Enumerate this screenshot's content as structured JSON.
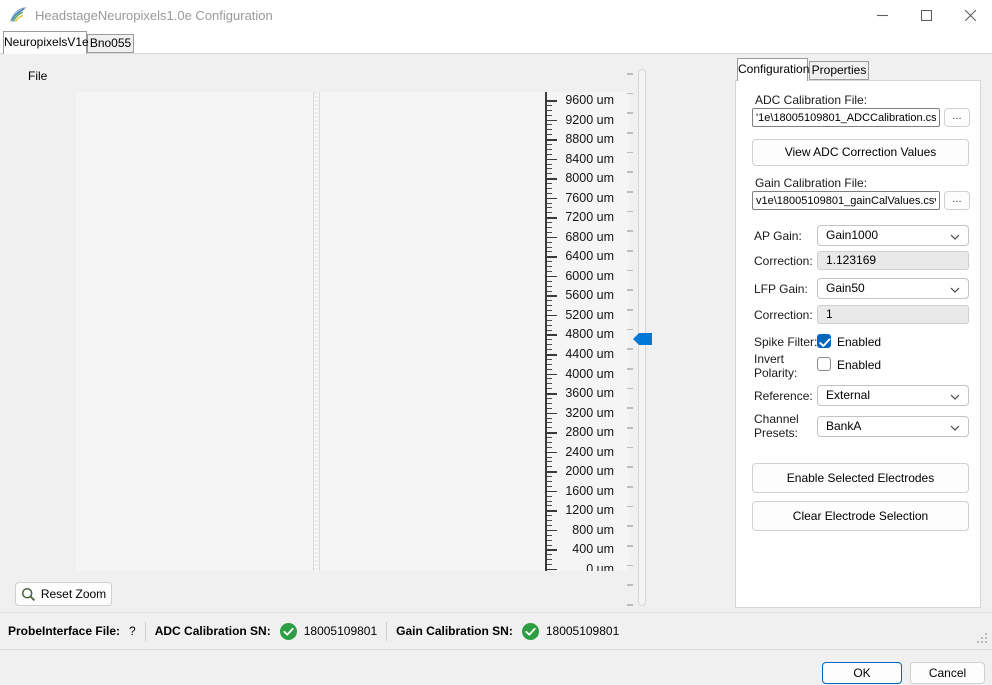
{
  "window": {
    "title": "HeadstageNeuropixels1.0e Configuration"
  },
  "icons": {
    "app_icon": "bonsai-logo",
    "minimize": "minimize-icon",
    "maximize": "maximize-icon",
    "close": "close-icon",
    "reset_zoom": "magnifier-icon",
    "status_check": "green-check-circle-icon",
    "combo_arrow": "chevron-down-icon",
    "resize_grip": "resize-grip-icon",
    "status_green": "#2e9e44",
    "accent_blue": "#0078d7",
    "checkbox_blue": "#0067c0"
  },
  "main_tabs": [
    {
      "label": "NeuropixelsV1e",
      "selected": true
    },
    {
      "label": "Bno055",
      "selected": false
    }
  ],
  "menu": {
    "file": "File"
  },
  "probe_view": {
    "ruler_unit": "um",
    "ruler_labels": [
      "9600 um",
      "9200 um",
      "8800 um",
      "8400 um",
      "8000 um",
      "7600 um",
      "7200 um",
      "6800 um",
      "6400 um",
      "6000 um",
      "5600 um",
      "5200 um",
      "4800 um",
      "4400 um",
      "4000 um",
      "3600 um",
      "3200 um",
      "2800 um",
      "2400 um",
      "2000 um",
      "1600 um",
      "1200 um",
      "800 um",
      "400 um",
      "0 um"
    ],
    "reset_zoom": "Reset Zoom"
  },
  "side_panel": {
    "tabs": [
      {
        "label": "Configuration",
        "selected": true
      },
      {
        "label": "Properties",
        "selected": false
      }
    ],
    "adc_file": {
      "label": "ADC Calibration File:",
      "value": "'1e\\18005109801_ADCCalibration.csv",
      "browse": "..."
    },
    "view_adc_button": "View ADC Correction Values",
    "gain_file": {
      "label": "Gain Calibration File:",
      "value": "v1e\\18005109801_gainCalValues.csv",
      "browse": "..."
    },
    "ap_gain": {
      "label": "AP Gain:",
      "value": "Gain1000"
    },
    "ap_correction": {
      "label": "Correction:",
      "value": "1.123169"
    },
    "lfp_gain": {
      "label": "LFP Gain:",
      "value": "Gain50"
    },
    "lfp_correction": {
      "label": "Correction:",
      "value": "1"
    },
    "spike_filter": {
      "label": "Spike Filter:",
      "checkbox_label": "Enabled",
      "checked": true
    },
    "invert_polarity": {
      "label": "Invert Polarity:",
      "checkbox_label": "Enabled",
      "checked": false
    },
    "reference": {
      "label": "Reference:",
      "value": "External"
    },
    "channel_presets": {
      "label": "Channel Presets:",
      "value": "BankA"
    },
    "enable_electrodes_button": "Enable Selected Electrodes",
    "clear_selection_button": "Clear Electrode Selection"
  },
  "status_bar": {
    "probe_interface_label": "ProbeInterface File:",
    "probe_interface_value": "?",
    "adc_sn_label": "ADC Calibration SN:",
    "adc_sn_value": "18005109801",
    "gain_sn_label": "Gain Calibration SN:",
    "gain_sn_value": "18005109801"
  },
  "footer": {
    "ok": "OK",
    "cancel": "Cancel"
  }
}
